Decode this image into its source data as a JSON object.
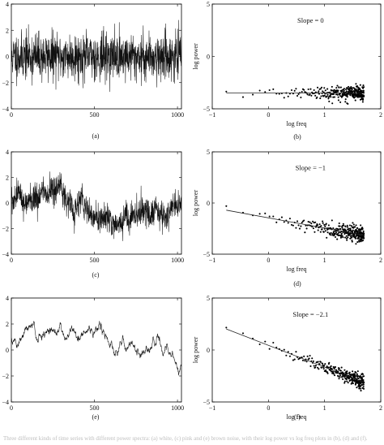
{
  "figure": {
    "caption": "Three different kinds of time series with different power spectra: (a) white, (c) pink and (e) brown noise, with their log power vs log freq plots in (b), (d) and (f)."
  },
  "chart_data": [
    {
      "id": "a",
      "type": "line",
      "panel_label": "(a)",
      "xlim": [
        0,
        1024
      ],
      "ylim": [
        -4,
        4
      ],
      "xticks": [
        0,
        500,
        1000
      ],
      "yticks": [
        -4,
        -2,
        0,
        2,
        4
      ],
      "xlabel": "",
      "ylabel": "",
      "series": [
        {
          "style": "line",
          "n": 1024,
          "kind": "white",
          "amplitude": 0.9,
          "seed": 11
        }
      ]
    },
    {
      "id": "b",
      "type": "scatter",
      "panel_label": "(b)",
      "xlim": [
        -1,
        2
      ],
      "ylim": [
        -5,
        5
      ],
      "xticks": [
        -1,
        0,
        1,
        2
      ],
      "yticks": [
        -5,
        0,
        5
      ],
      "xlabel": "log freq",
      "ylabel": "log power",
      "annotation": "Slope = 0",
      "fit": {
        "slope": 0,
        "intercept": -3.5,
        "x_start": -0.75,
        "x_end": 1.7
      },
      "series": [
        {
          "style": "points",
          "x_start": -0.75,
          "x_end": 1.7,
          "spread": 0.35,
          "seed": 21
        }
      ]
    },
    {
      "id": "c",
      "type": "line",
      "panel_label": "(c)",
      "xlim": [
        0,
        1024
      ],
      "ylim": [
        -4,
        4
      ],
      "xticks": [
        0,
        500,
        1000
      ],
      "yticks": [
        -4,
        -2,
        0,
        2,
        4
      ],
      "xlabel": "",
      "ylabel": "",
      "series": [
        {
          "style": "line",
          "n": 1024,
          "kind": "pink",
          "amplitude": 0.55,
          "seed": 31
        }
      ]
    },
    {
      "id": "d",
      "type": "scatter",
      "panel_label": "(d)",
      "xlim": [
        -1,
        2
      ],
      "ylim": [
        -5,
        5
      ],
      "xticks": [
        -1,
        0,
        1,
        2
      ],
      "yticks": [
        -5,
        0,
        5
      ],
      "xlabel": "log freq",
      "ylabel": "log power",
      "annotation": "Slope = −1",
      "fit": {
        "slope": -1,
        "intercept": -1.45,
        "x_start": -0.75,
        "x_end": 1.7
      },
      "series": [
        {
          "style": "points",
          "x_start": -0.75,
          "x_end": 1.7,
          "spread": 0.4,
          "seed": 41
        }
      ]
    },
    {
      "id": "e",
      "type": "line",
      "panel_label": "(e)",
      "xlim": [
        0,
        1024
      ],
      "ylim": [
        -4,
        4
      ],
      "xticks": [
        0,
        500,
        1000
      ],
      "yticks": [
        -4,
        -2,
        0,
        2,
        4
      ],
      "xlabel": "",
      "ylabel": "",
      "series": [
        {
          "style": "line",
          "n": 1024,
          "kind": "brown",
          "amplitude": 0.35,
          "seed": 51
        }
      ]
    },
    {
      "id": "f",
      "type": "scatter",
      "panel_label": "(f)",
      "xlim": [
        -1,
        2
      ],
      "ylim": [
        -5,
        5
      ],
      "xticks": [
        -1,
        0,
        1,
        2
      ],
      "yticks": [
        -5,
        0,
        5
      ],
      "xlabel": "log freq",
      "ylabel": "log power",
      "annotation": "Slope = −2.1",
      "fit": {
        "slope": -2.1,
        "intercept": 0.45,
        "x_start": -0.75,
        "x_end": 1.7
      },
      "series": [
        {
          "style": "points",
          "x_start": -0.75,
          "x_end": 1.7,
          "spread": 0.35,
          "seed": 61
        }
      ]
    }
  ]
}
